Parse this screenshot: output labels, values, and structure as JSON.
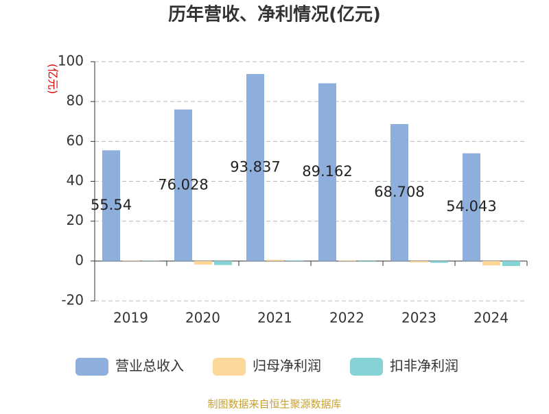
{
  "chart_data": {
    "type": "bar",
    "title": "历年营收、净利情况(亿元)",
    "y_label": "(亿元)",
    "categories": [
      "2019",
      "2020",
      "2021",
      "2022",
      "2023",
      "2024"
    ],
    "series": [
      {
        "name": "营业总收入",
        "color": "#8eaedb",
        "values": [
          55.54,
          76.028,
          93.837,
          89.162,
          68.708,
          54.043
        ]
      },
      {
        "name": "归母净利润",
        "color": "#fdd89a",
        "values": [
          0.2,
          -1.8,
          0.6,
          0.3,
          -0.7,
          -2.2
        ]
      },
      {
        "name": "扣非净利润",
        "color": "#86d3d6",
        "values": [
          0.1,
          -2.0,
          0.3,
          -0.4,
          -0.9,
          -2.5
        ]
      }
    ],
    "ylim": [
      -20,
      100
    ],
    "yticks": [
      -20,
      0,
      20,
      40,
      60,
      80,
      100
    ],
    "grid": true,
    "source": "制图数据来自恒生聚源数据库"
  }
}
